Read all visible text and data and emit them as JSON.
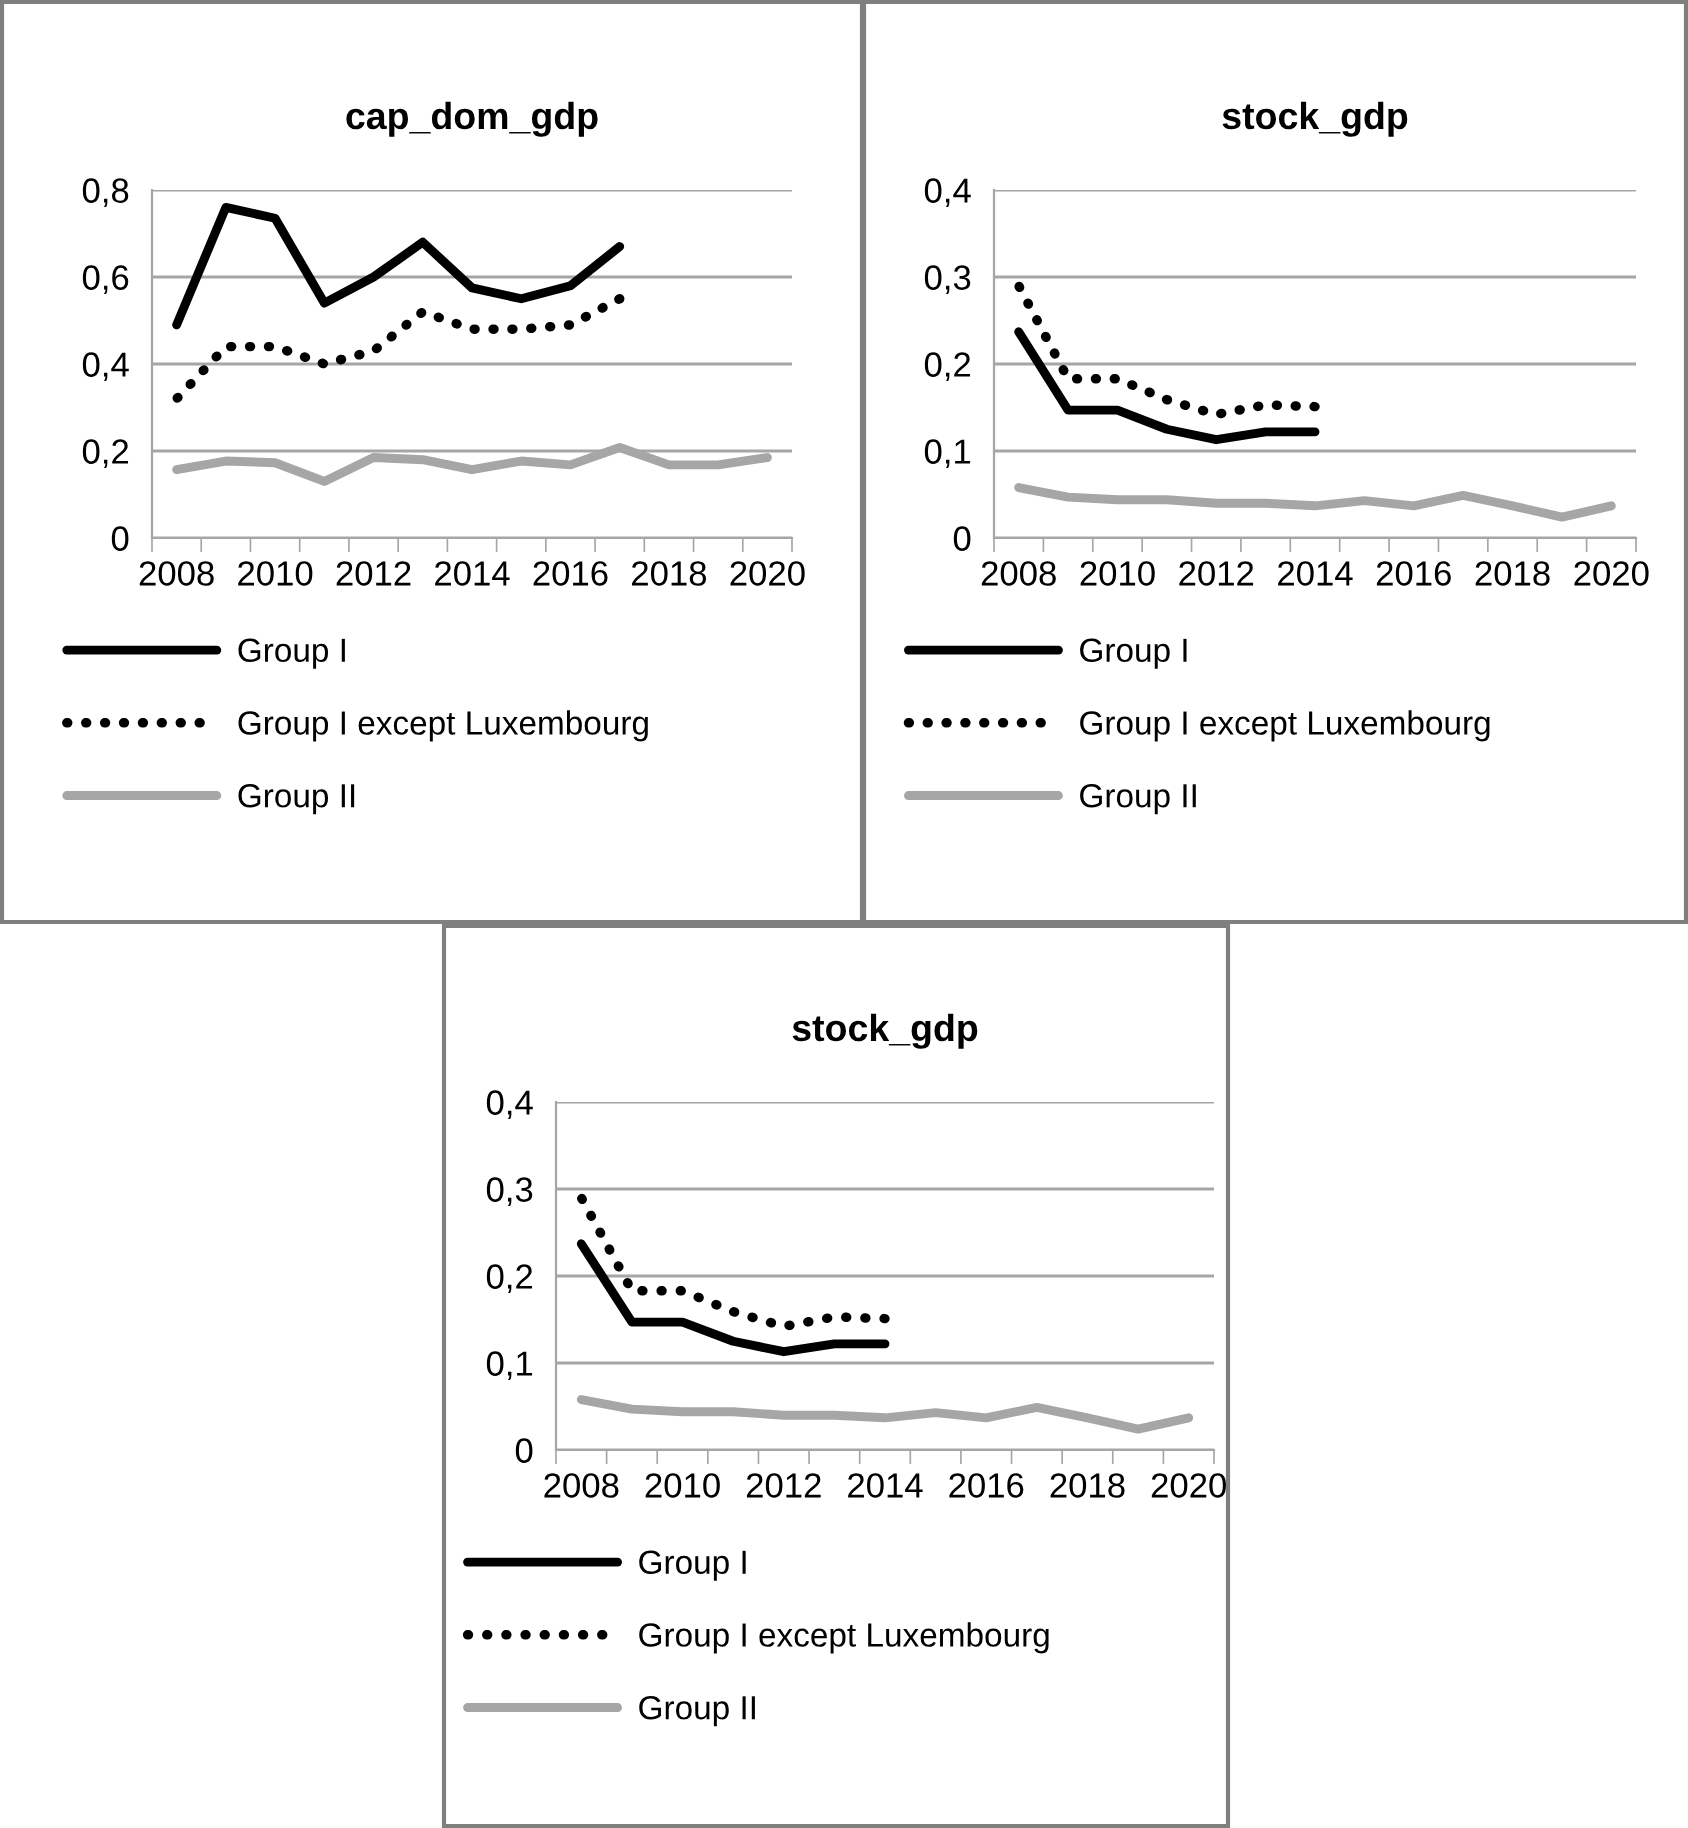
{
  "chart_data": [
    {
      "type": "line",
      "title": "cap_dom_gdp",
      "categories": [
        "2008",
        null,
        "2010",
        null,
        "2012",
        null,
        "2014",
        null,
        "2016",
        null,
        "2018",
        null,
        "2020"
      ],
      "ylim": [
        0,
        0.8
      ],
      "yticks": [
        {
          "value": 0,
          "label": "0"
        },
        {
          "value": 0.2,
          "label": "0,2"
        },
        {
          "value": 0.4,
          "label": "0,4"
        },
        {
          "value": 0.6,
          "label": "0,6"
        },
        {
          "value": 0.8,
          "label": "0,8"
        }
      ],
      "grid": "y",
      "legend": "bottom",
      "marker": "none",
      "series": [
        {
          "name": "Group I",
          "color": "#000000",
          "line_style": "solid",
          "values": [
            0.49,
            0.76,
            0.735,
            0.54,
            0.6,
            0.68,
            0.575,
            0.55,
            0.58,
            0.67,
            null,
            null,
            null
          ]
        },
        {
          "name": "Group I except Luxembourg",
          "color": "#000000",
          "line_style": "dotted",
          "values": [
            0.32,
            0.44,
            0.44,
            0.4,
            0.43,
            0.52,
            0.48,
            0.48,
            0.49,
            0.55,
            null,
            null,
            null
          ]
        },
        {
          "name": "Group II",
          "color": "#a6a6a6",
          "line_style": "solid",
          "values": [
            0.157,
            0.177,
            0.173,
            0.13,
            0.185,
            0.18,
            0.157,
            0.177,
            0.168,
            0.208,
            0.168,
            0.168,
            0.185
          ]
        }
      ]
    },
    {
      "type": "line",
      "title": "stock_gdp",
      "categories": [
        "2008",
        null,
        "2010",
        null,
        "2012",
        null,
        "2014",
        null,
        "2016",
        null,
        "2018",
        null,
        "2020"
      ],
      "ylim": [
        0,
        0.4
      ],
      "yticks": [
        {
          "value": 0,
          "label": "0"
        },
        {
          "value": 0.1,
          "label": "0,1"
        },
        {
          "value": 0.2,
          "label": "0,2"
        },
        {
          "value": 0.3,
          "label": "0,3"
        },
        {
          "value": 0.4,
          "label": "0,4"
        }
      ],
      "grid": "y",
      "legend": "bottom",
      "marker": "none",
      "series": [
        {
          "name": "Group I",
          "color": "#000000",
          "line_style": "solid",
          "values": [
            0.237,
            0.147,
            0.147,
            0.125,
            0.113,
            0.122,
            0.122,
            null,
            null,
            null,
            null,
            null,
            null
          ]
        },
        {
          "name": "Group I except Luxembourg",
          "color": "#000000",
          "line_style": "dotted",
          "values": [
            0.29,
            0.183,
            0.183,
            0.159,
            0.142,
            0.153,
            0.151,
            null,
            null,
            null,
            null,
            null,
            null
          ]
        },
        {
          "name": "Group II",
          "color": "#a6a6a6",
          "line_style": "solid",
          "values": [
            0.058,
            0.047,
            0.044,
            0.044,
            0.04,
            0.04,
            0.037,
            0.043,
            0.037,
            0.049,
            0.037,
            0.024,
            0.037
          ]
        }
      ]
    },
    {
      "type": "line",
      "title": "stock_gdp",
      "categories": [
        "2008",
        null,
        "2010",
        null,
        "2012",
        null,
        "2014",
        null,
        "2016",
        null,
        "2018",
        null,
        "2020"
      ],
      "ylim": [
        0,
        0.4
      ],
      "yticks": [
        {
          "value": 0,
          "label": "0"
        },
        {
          "value": 0.1,
          "label": "0,1"
        },
        {
          "value": 0.2,
          "label": "0,2"
        },
        {
          "value": 0.3,
          "label": "0,3"
        },
        {
          "value": 0.4,
          "label": "0,4"
        }
      ],
      "grid": "y",
      "legend": "bottom",
      "marker": "none",
      "series": [
        {
          "name": "Group I",
          "color": "#000000",
          "line_style": "solid",
          "values": [
            0.237,
            0.147,
            0.147,
            0.125,
            0.113,
            0.122,
            0.122,
            null,
            null,
            null,
            null,
            null,
            null
          ]
        },
        {
          "name": "Group I except Luxembourg",
          "color": "#000000",
          "line_style": "dotted",
          "values": [
            0.29,
            0.183,
            0.183,
            0.159,
            0.142,
            0.153,
            0.151,
            null,
            null,
            null,
            null,
            null,
            null
          ]
        },
        {
          "name": "Group II",
          "color": "#a6a6a6",
          "line_style": "solid",
          "values": [
            0.058,
            0.047,
            0.044,
            0.044,
            0.04,
            0.04,
            0.037,
            0.043,
            0.037,
            0.049,
            0.037,
            0.024,
            0.037
          ]
        }
      ]
    }
  ]
}
